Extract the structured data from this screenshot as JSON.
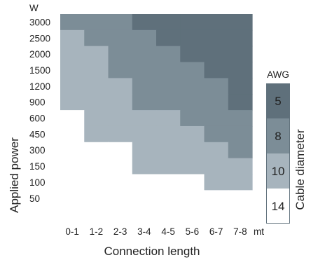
{
  "chart_data": {
    "type": "heatmap",
    "y_unit": "W",
    "x_unit": "mt",
    "xlabel": "Connection length",
    "ylabel": "Applied power",
    "x_categories": [
      "0-1",
      "1-2",
      "2-3",
      "3-4",
      "4-5",
      "5-6",
      "6-7",
      "7-8"
    ],
    "y_categories": [
      "3000",
      "2500",
      "2000",
      "1500",
      "1200",
      "900",
      "600",
      "450",
      "300",
      "150",
      "100",
      "50"
    ],
    "grid": [
      [
        8,
        8,
        8,
        5,
        5,
        5,
        5,
        5
      ],
      [
        10,
        8,
        8,
        8,
        5,
        5,
        5,
        5
      ],
      [
        10,
        10,
        8,
        8,
        8,
        5,
        5,
        5
      ],
      [
        10,
        10,
        8,
        8,
        8,
        8,
        5,
        5
      ],
      [
        10,
        10,
        10,
        8,
        8,
        8,
        8,
        5
      ],
      [
        10,
        10,
        10,
        8,
        8,
        8,
        8,
        5
      ],
      [
        14,
        10,
        10,
        10,
        10,
        8,
        8,
        8
      ],
      [
        14,
        10,
        10,
        10,
        10,
        10,
        8,
        8
      ],
      [
        14,
        14,
        14,
        10,
        10,
        10,
        10,
        8
      ],
      [
        14,
        14,
        14,
        10,
        10,
        10,
        10,
        10
      ],
      [
        14,
        14,
        14,
        14,
        14,
        14,
        10,
        10
      ],
      [
        14,
        14,
        14,
        14,
        14,
        14,
        14,
        14
      ]
    ],
    "legend": {
      "title": "AWG",
      "side_label": "Cable diameter",
      "entries": [
        {
          "label": "5",
          "color": "#5f707b"
        },
        {
          "label": "8",
          "color": "#7c8d97"
        },
        {
          "label": "10",
          "color": "#a7b4bd"
        },
        {
          "label": "14",
          "color": "#ffffff"
        }
      ]
    },
    "colors": {
      "5": "#5f707b",
      "8": "#7c8d97",
      "10": "#a7b4bd",
      "14": "#ffffff"
    }
  }
}
